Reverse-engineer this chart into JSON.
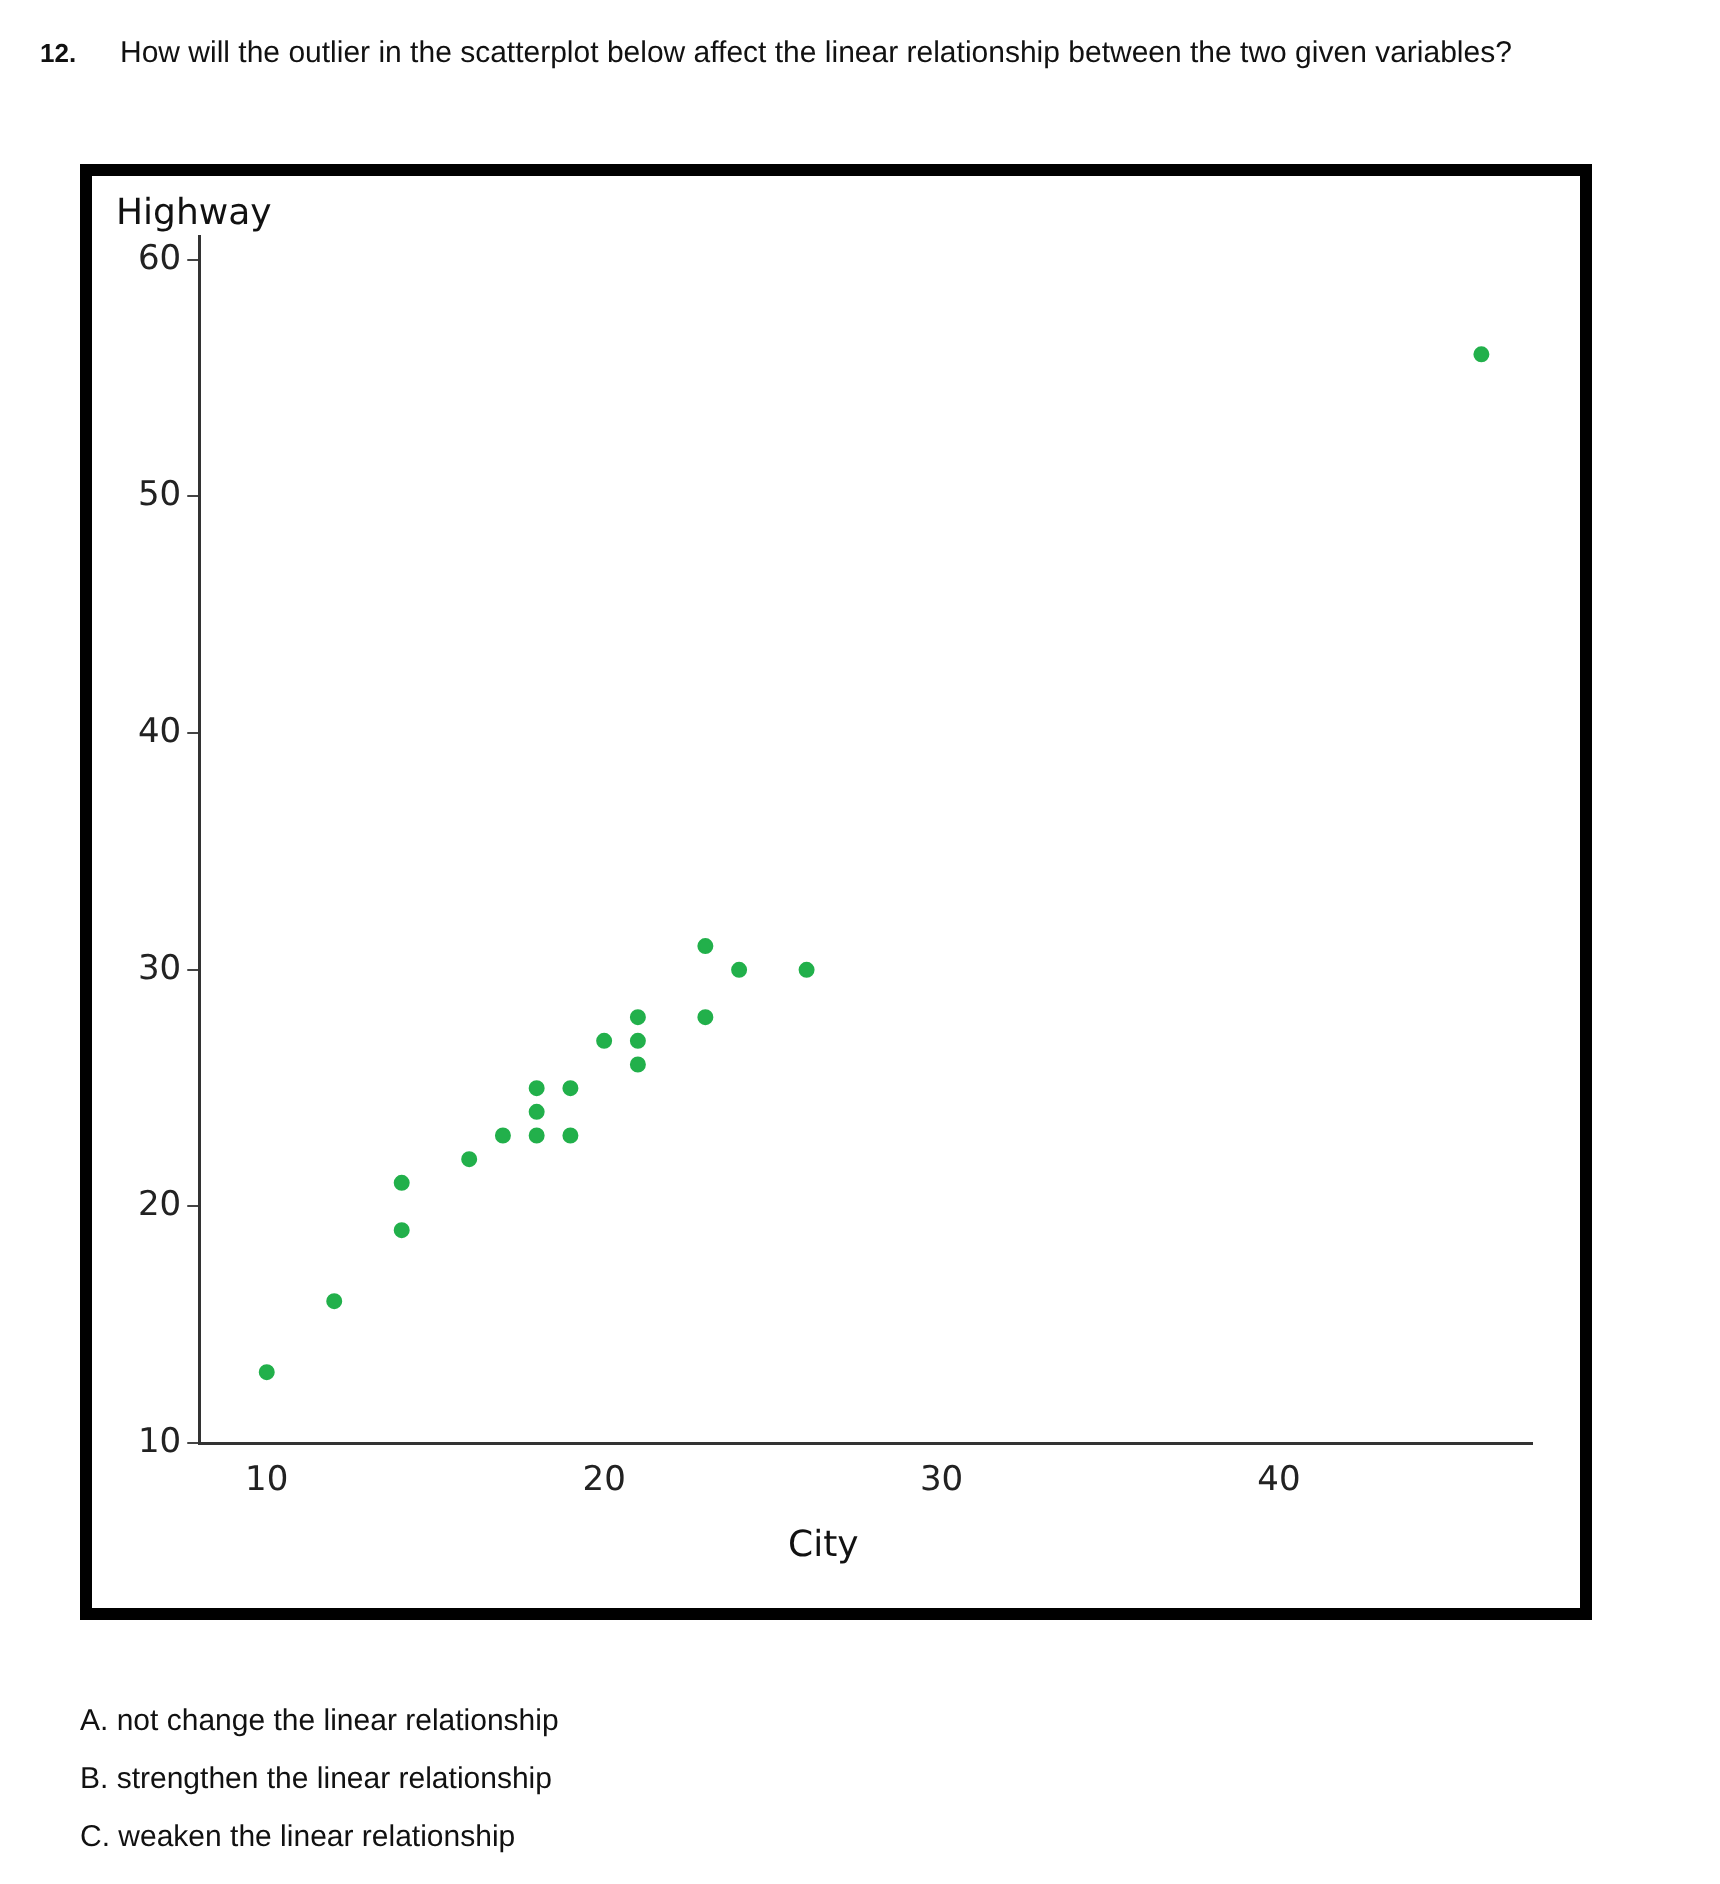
{
  "chart_data": {
    "type": "scatter",
    "title": "How will the outlier in the scatterplot below affect the linear relationship between the two given variables?",
    "xlabel": "City",
    "ylabel": "Highway",
    "x": [
      10,
      12,
      14,
      14,
      16,
      17,
      18,
      18,
      18,
      19,
      19,
      20,
      21,
      21,
      21,
      23,
      23,
      24,
      26,
      46
    ],
    "series": [
      {
        "color": "#22b04b",
        "values": [
          13,
          16,
          21,
          19,
          22,
          23,
          25,
          24,
          23,
          25,
          23,
          27,
          28,
          27,
          26,
          31,
          28,
          30,
          30,
          56
        ]
      }
    ],
    "xlim": [
      8,
      47.5
    ],
    "xticks": [
      10,
      20,
      30,
      40
    ],
    "ylim": [
      10,
      61
    ],
    "yticks": [
      10,
      20,
      30,
      40,
      50,
      60
    ],
    "grid": false,
    "legend": false,
    "marker": "circle",
    "annotations": [
      "12.",
      "A. not change the linear relationship",
      "B. strengthen the linear relationship",
      "C. weaken the linear relationship"
    ]
  }
}
